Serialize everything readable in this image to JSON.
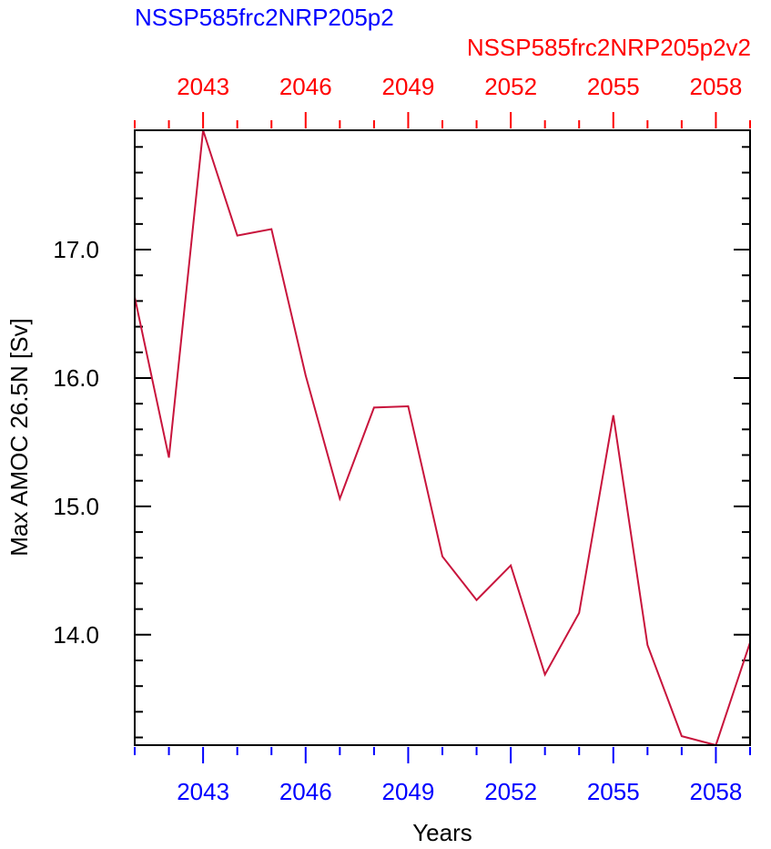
{
  "chart_data": {
    "type": "line",
    "title_left": "NSSP585frc2NRP205p2",
    "title_right": "NSSP585frc2NRP205p2v2",
    "xlabel": "Years",
    "ylabel": "Max AMOC 26.5N [Sv]",
    "xlim": [
      2041,
      2059
    ],
    "ylim": [
      13.14,
      17.93
    ],
    "x_major_ticks": [
      2043,
      2046,
      2049,
      2052,
      2055,
      2058
    ],
    "x_major_tick_labels": [
      "2043",
      "2046",
      "2049",
      "2052",
      "2055",
      "2058"
    ],
    "y_major_ticks": [
      14.0,
      15.0,
      16.0,
      17.0
    ],
    "y_major_tick_labels": [
      "14.0",
      "15.0",
      "16.0",
      "17.0"
    ],
    "y_minor_step": 0.2,
    "grid": false,
    "colors": {
      "bottom_axis": "#0000ff",
      "top_axis": "#ff0000",
      "left_title": "#0000ff",
      "right_title": "#ff0000",
      "line": "#c8143c",
      "frame": "#000000"
    },
    "series": [
      {
        "x": [
          2041,
          2042,
          2043,
          2044,
          2045,
          2046,
          2047,
          2048,
          2049,
          2050,
          2051,
          2052,
          2053,
          2054,
          2055,
          2056,
          2057,
          2058,
          2059
        ],
        "values": [
          16.63,
          15.38,
          17.93,
          17.11,
          17.16,
          16.02,
          15.06,
          15.77,
          15.78,
          14.61,
          14.27,
          14.54,
          13.69,
          14.17,
          15.71,
          13.92,
          13.21,
          13.14,
          13.94
        ]
      }
    ]
  }
}
